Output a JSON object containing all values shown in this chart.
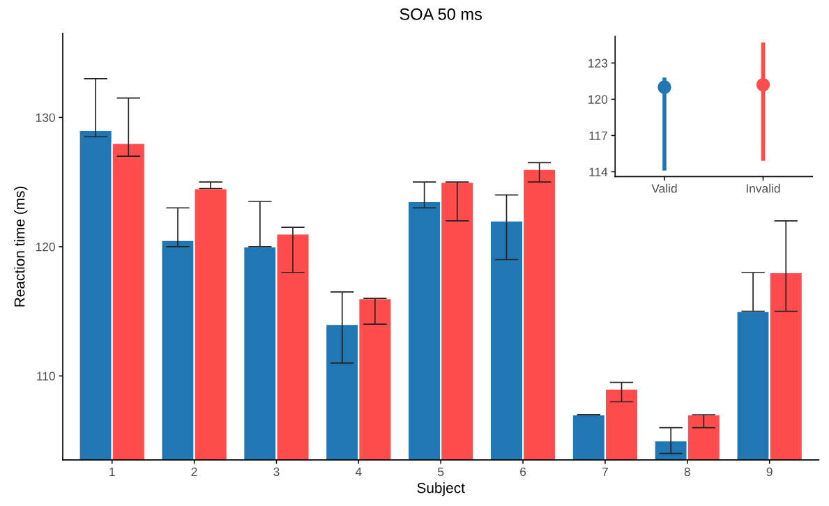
{
  "chart_data": [
    {
      "type": "bar",
      "title": "SOA 50 ms",
      "xlabel": "Subject",
      "ylabel": "Reaction time (ms)",
      "categories": [
        "1",
        "2",
        "3",
        "4",
        "5",
        "6",
        "7",
        "8",
        "9"
      ],
      "series": [
        {
          "color": "#2077b4",
          "values": [
            129,
            120.5,
            120,
            114,
            123.5,
            122,
            107,
            105,
            115
          ],
          "errors": [
            [
              128.5,
              133
            ],
            [
              120,
              123
            ],
            [
              120,
              123.5
            ],
            [
              111,
              116.5
            ],
            [
              123,
              125
            ],
            [
              119,
              124
            ],
            [
              107,
              107
            ],
            [
              104,
              106
            ],
            [
              115,
              118
            ]
          ]
        },
        {
          "color": "#ff4d4d",
          "values": [
            128,
            124.5,
            121,
            116,
            125,
            126,
            109,
            107,
            118
          ],
          "errors": [
            [
              127,
              131.5
            ],
            [
              124.5,
              125
            ],
            [
              118,
              121.5
            ],
            [
              114,
              116
            ],
            [
              122,
              125
            ],
            [
              125,
              126.5
            ],
            [
              108,
              109.5
            ],
            [
              106,
              107
            ],
            [
              115,
              122
            ]
          ]
        }
      ],
      "ylim": [
        103.5,
        136.5
      ],
      "yticks": [
        110,
        120,
        130
      ],
      "grid": false,
      "legend": false
    },
    {
      "type": "scatter",
      "categories": [
        "Valid",
        "Invalid"
      ],
      "values": [
        121.0,
        121.2
      ],
      "colors": [
        "#2077b4",
        "#ff4d4d"
      ],
      "errors": [
        [
          114.1,
          121.8
        ],
        [
          114.9,
          124.7
        ]
      ],
      "marker": "circle",
      "ylim": [
        113.6,
        125.2
      ],
      "yticks": [
        114,
        117,
        120,
        123
      ],
      "grid": false,
      "legend": false
    }
  ]
}
